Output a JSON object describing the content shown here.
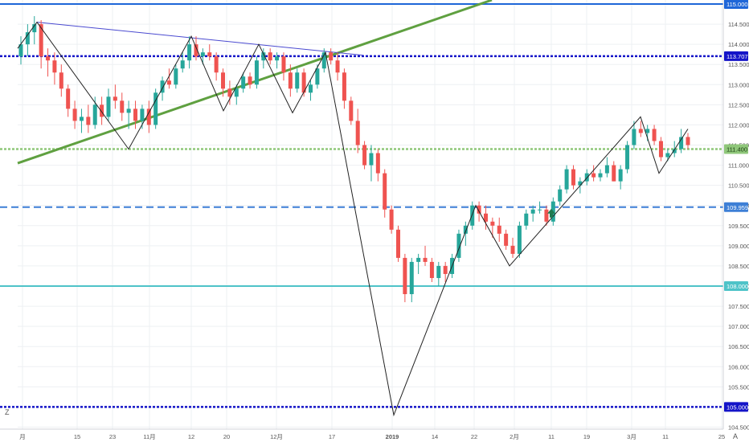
{
  "chart_data": {
    "type": "candlestick",
    "title": "",
    "xlabel": "",
    "ylabel": "",
    "ylim": [
      104.45,
      115.1
    ],
    "x_tick_labels": [
      "月",
      "15",
      "23",
      "11月",
      "12",
      "20",
      "12月",
      "17",
      "2019",
      "14",
      "22",
      "2月",
      "11",
      "19",
      "3月",
      "11",
      "25"
    ],
    "y_tick_labels": [
      "114.500",
      "114.000",
      "113.500",
      "113.000",
      "112.500",
      "112.000",
      "111.500",
      "111.000",
      "110.500",
      "110.000",
      "109.500",
      "109.000",
      "108.500",
      "108.000",
      "107.500",
      "107.000",
      "106.500",
      "106.000",
      "105.500",
      "105.000",
      "104.500"
    ],
    "price_tags": [
      {
        "value": 115.0,
        "label": "115.000",
        "color": "#1e66d8"
      },
      {
        "value": 113.707,
        "label": "113.707",
        "color": "#1414c8"
      },
      {
        "value": 111.4,
        "label": "111.400",
        "color": "#8fc77a"
      },
      {
        "value": 109.959,
        "label": "109.959",
        "color": "#3d7fd6"
      },
      {
        "value": 108.0,
        "label": "108.000",
        "color": "#4ec3c8"
      },
      {
        "value": 105.0,
        "label": "105.000",
        "color": "#1414c8"
      }
    ],
    "horizontal_lines": [
      {
        "value": 115.0,
        "style": "solid",
        "color": "#1e66d8"
      },
      {
        "value": 113.707,
        "style": "dotted",
        "color": "#1414c8"
      },
      {
        "value": 111.4,
        "style": "dotted",
        "color": "#8fc77a"
      },
      {
        "value": 109.959,
        "style": "dashed",
        "color": "#3d7fd6"
      },
      {
        "value": 108.0,
        "style": "solid",
        "color": "#4ec3c8"
      },
      {
        "value": 105.0,
        "style": "dotted",
        "color": "#1414c8"
      }
    ],
    "candles": [
      [
        113.7,
        114.2,
        113.5,
        114.0
      ],
      [
        114.0,
        114.5,
        113.7,
        114.3
      ],
      [
        114.3,
        114.7,
        114.0,
        114.5
      ],
      [
        114.5,
        114.6,
        113.4,
        113.7
      ],
      [
        113.7,
        113.9,
        113.2,
        113.6
      ],
      [
        113.6,
        113.8,
        113.0,
        113.3
      ],
      [
        113.3,
        113.5,
        112.7,
        112.9
      ],
      [
        112.9,
        113.0,
        112.2,
        112.4
      ],
      [
        112.4,
        112.6,
        111.9,
        112.1
      ],
      [
        112.1,
        112.4,
        111.8,
        112.2
      ],
      [
        112.2,
        112.5,
        111.8,
        112.0
      ],
      [
        112.0,
        112.7,
        111.9,
        112.5
      ],
      [
        112.5,
        112.7,
        112.0,
        112.2
      ],
      [
        112.2,
        112.9,
        112.1,
        112.7
      ],
      [
        112.7,
        113.0,
        112.4,
        112.6
      ],
      [
        112.6,
        112.8,
        112.1,
        112.3
      ],
      [
        112.3,
        112.6,
        111.9,
        112.4
      ],
      [
        112.4,
        112.6,
        111.9,
        112.1
      ],
      [
        112.1,
        112.5,
        111.9,
        112.4
      ],
      [
        112.4,
        112.6,
        111.8,
        112.0
      ],
      [
        112.0,
        112.9,
        111.9,
        112.8
      ],
      [
        112.8,
        113.2,
        112.6,
        113.1
      ],
      [
        113.1,
        113.4,
        112.9,
        113.0
      ],
      [
        113.0,
        113.5,
        112.9,
        113.4
      ],
      [
        113.4,
        113.8,
        113.3,
        113.6
      ],
      [
        113.6,
        114.2,
        113.4,
        114.0
      ],
      [
        114.0,
        114.2,
        113.6,
        113.7
      ],
      [
        113.7,
        113.9,
        113.5,
        113.8
      ],
      [
        113.8,
        114.0,
        113.6,
        113.7
      ],
      [
        113.7,
        113.8,
        113.1,
        113.3
      ],
      [
        113.3,
        113.4,
        112.7,
        112.9
      ],
      [
        112.9,
        113.1,
        112.5,
        112.7
      ],
      [
        112.7,
        113.0,
        112.5,
        112.9
      ],
      [
        112.9,
        113.3,
        112.8,
        113.2
      ],
      [
        113.2,
        113.3,
        112.9,
        113.0
      ],
      [
        113.0,
        113.7,
        112.9,
        113.6
      ],
      [
        113.6,
        113.9,
        113.4,
        113.8
      ],
      [
        113.8,
        113.9,
        113.5,
        113.6
      ],
      [
        113.6,
        113.8,
        113.4,
        113.7
      ],
      [
        113.7,
        113.8,
        113.1,
        113.3
      ],
      [
        113.3,
        113.5,
        112.7,
        112.9
      ],
      [
        112.9,
        113.4,
        112.8,
        113.3
      ],
      [
        113.3,
        113.4,
        112.7,
        112.8
      ],
      [
        112.8,
        113.1,
        112.6,
        113.0
      ],
      [
        113.0,
        113.5,
        112.9,
        113.4
      ],
      [
        113.4,
        113.9,
        113.3,
        113.8
      ],
      [
        113.8,
        113.9,
        113.5,
        113.6
      ],
      [
        113.6,
        113.8,
        113.1,
        113.3
      ],
      [
        113.3,
        113.4,
        112.4,
        112.6
      ],
      [
        112.6,
        112.7,
        112.0,
        112.1
      ],
      [
        112.1,
        112.4,
        111.3,
        111.5
      ],
      [
        111.5,
        111.6,
        110.9,
        111.0
      ],
      [
        111.0,
        111.5,
        110.6,
        111.3
      ],
      [
        111.3,
        111.4,
        110.6,
        110.8
      ],
      [
        110.8,
        110.9,
        109.7,
        109.9
      ],
      [
        109.9,
        110.0,
        109.3,
        109.4
      ],
      [
        109.4,
        109.5,
        108.6,
        108.7
      ],
      [
        108.7,
        108.8,
        107.6,
        107.8
      ],
      [
        107.8,
        108.7,
        107.6,
        108.6
      ],
      [
        108.6,
        108.8,
        108.3,
        108.7
      ],
      [
        108.7,
        109.0,
        108.5,
        108.6
      ],
      [
        108.6,
        108.7,
        108.1,
        108.2
      ],
      [
        108.2,
        108.6,
        108.0,
        108.5
      ],
      [
        108.5,
        108.6,
        108.1,
        108.3
      ],
      [
        108.3,
        108.8,
        108.2,
        108.7
      ],
      [
        108.7,
        109.4,
        108.6,
        109.3
      ],
      [
        109.3,
        109.6,
        109.0,
        109.5
      ],
      [
        109.5,
        110.1,
        109.4,
        110.0
      ],
      [
        110.0,
        110.1,
        109.6,
        109.8
      ],
      [
        109.8,
        110.0,
        109.4,
        109.6
      ],
      [
        109.6,
        109.7,
        109.2,
        109.5
      ],
      [
        109.5,
        109.7,
        109.1,
        109.3
      ],
      [
        109.3,
        109.4,
        108.9,
        109.0
      ],
      [
        109.0,
        109.2,
        108.7,
        108.8
      ],
      [
        108.8,
        109.6,
        108.7,
        109.5
      ],
      [
        109.5,
        109.9,
        109.4,
        109.8
      ],
      [
        109.8,
        110.0,
        109.6,
        109.9
      ],
      [
        109.9,
        110.1,
        109.8,
        109.9
      ],
      [
        109.9,
        110.0,
        109.5,
        109.6
      ],
      [
        109.6,
        110.2,
        109.5,
        110.1
      ],
      [
        110.1,
        110.5,
        110.0,
        110.4
      ],
      [
        110.4,
        111.0,
        110.3,
        110.9
      ],
      [
        110.9,
        111.0,
        110.4,
        110.5
      ],
      [
        110.5,
        110.7,
        110.3,
        110.6
      ],
      [
        110.6,
        110.9,
        110.5,
        110.8
      ],
      [
        110.8,
        111.0,
        110.6,
        110.7
      ],
      [
        110.7,
        110.9,
        110.6,
        110.8
      ],
      [
        110.8,
        111.2,
        110.7,
        111.0
      ],
      [
        111.0,
        111.1,
        110.6,
        110.6
      ],
      [
        110.6,
        111.0,
        110.4,
        110.9
      ],
      [
        110.9,
        111.6,
        110.8,
        111.5
      ],
      [
        111.5,
        112.1,
        111.4,
        111.9
      ],
      [
        111.9,
        112.1,
        111.7,
        111.8
      ],
      [
        111.8,
        112.0,
        111.6,
        111.9
      ],
      [
        111.9,
        112.0,
        111.5,
        111.6
      ],
      [
        111.6,
        111.7,
        111.1,
        111.2
      ],
      [
        111.2,
        111.4,
        111.1,
        111.3
      ],
      [
        111.3,
        111.6,
        111.2,
        111.4
      ],
      [
        111.4,
        111.9,
        111.3,
        111.7
      ],
      [
        111.7,
        111.8,
        111.4,
        111.5
      ]
    ]
  },
  "colors": {
    "up": "#26a69a",
    "down": "#ef5350",
    "grid": "#eef0f3",
    "axis_text": "#555555",
    "trend_green": "#5fa040",
    "trend_blue": "#4a4ad0",
    "zigzag": "#222222"
  }
}
